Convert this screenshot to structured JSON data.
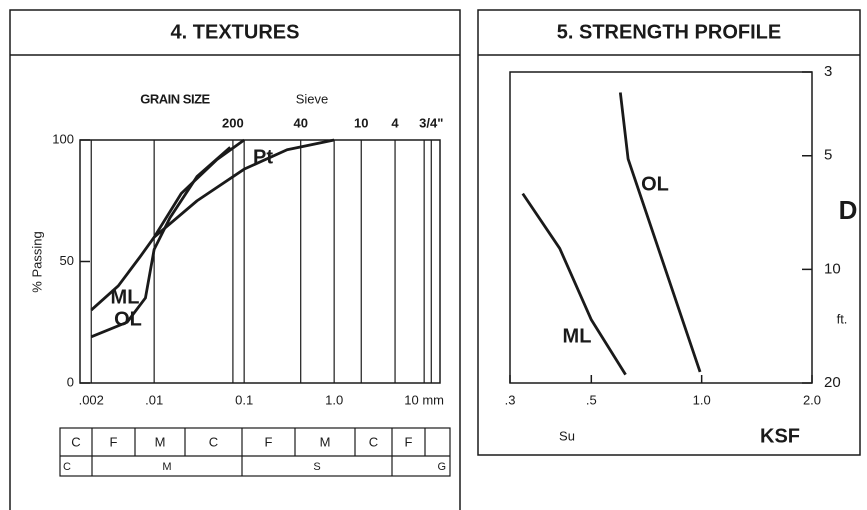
{
  "chart_data": [
    {
      "type": "line",
      "title": "4. TEXTURES",
      "subtitle": "GRAIN SIZE",
      "top_axis_label": "Sieve",
      "ylabel": "% Passing",
      "xscale": "log",
      "xlim": [
        0.0015,
        15
      ],
      "ylim": [
        0,
        100
      ],
      "xticks": [
        {
          "value": 0.002,
          "label": ".002"
        },
        {
          "value": 0.01,
          "label": ".01"
        },
        0.1,
        {
          "value": 1,
          "label": "1.0"
        },
        {
          "value": 10,
          "label": "10 mm"
        }
      ],
      "top_ticks": [
        {
          "value": 0.075,
          "label": "200"
        },
        {
          "value": 0.425,
          "label": "40"
        },
        {
          "value": 2,
          "label": "10"
        },
        {
          "value": 4.75,
          "label": "4"
        },
        {
          "value": 12,
          "label": "3/4\""
        }
      ],
      "yticks": [
        0,
        50,
        100
      ],
      "grid": true,
      "series": [
        {
          "name": "ML",
          "color": "#1a1a1a",
          "x": [
            0.002,
            0.004,
            0.007,
            0.01,
            0.02,
            0.05,
            0.1
          ],
          "values": [
            30,
            40,
            52,
            60,
            78,
            92,
            100
          ]
        },
        {
          "name": "OL",
          "color": "#1a1a1a",
          "x": [
            0.002,
            0.005,
            0.008,
            0.01,
            0.015,
            0.03,
            0.07
          ],
          "values": [
            19,
            25,
            35,
            55,
            68,
            85,
            97
          ]
        },
        {
          "name": "Pt",
          "color": "#1a1a1a",
          "x": [
            0.01,
            0.03,
            0.1,
            0.3,
            1.0
          ],
          "values": [
            60,
            75,
            88,
            96,
            100
          ]
        }
      ]
    },
    {
      "type": "line",
      "title": "5. STRENGTH PROFILE",
      "xlabel": "Su",
      "xunit": "KSF",
      "ylabel": "D",
      "yunit": "ft.",
      "xscale": "log",
      "yscale": "log",
      "xlim": [
        0.3,
        2.0
      ],
      "ylim": [
        20,
        3
      ],
      "xticks": [
        {
          "value": 0.3,
          "label": ".3"
        },
        {
          "value": 0.5,
          "label": ".5"
        },
        {
          "value": 1,
          "label": "1.0"
        },
        {
          "value": 2,
          "label": "2.0"
        }
      ],
      "yticks": [
        3,
        5,
        10,
        20
      ],
      "series": [
        {
          "name": "OL",
          "color": "#1a1a1a",
          "x": [
            0.6,
            0.63,
            0.99
          ],
          "values": [
            3.4,
            5.1,
            18.7
          ]
        },
        {
          "name": "ML",
          "color": "#1a1a1a",
          "x": [
            0.325,
            0.41,
            0.5,
            0.62
          ],
          "values": [
            6.3,
            8.8,
            13.6,
            19
          ]
        }
      ]
    }
  ],
  "classification_table": {
    "rows": [
      [
        "C",
        "F",
        "M",
        "C",
        "F",
        "M",
        "C",
        "F"
      ],
      [
        "C",
        "M",
        "S",
        "G"
      ]
    ]
  }
}
